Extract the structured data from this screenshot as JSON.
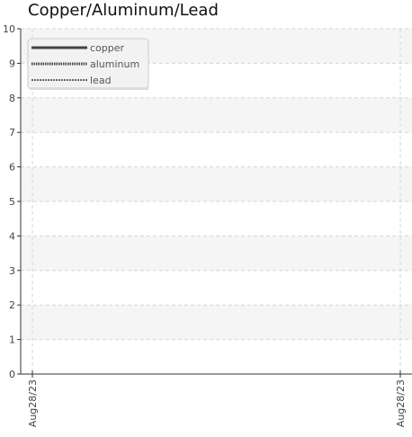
{
  "chart_data": {
    "type": "line",
    "title": "Copper/Aluminum/Lead",
    "xlabel": "",
    "ylabel": "",
    "ylim": [
      0,
      10
    ],
    "y_ticks": [
      "0",
      "1",
      "2",
      "3",
      "4",
      "5",
      "6",
      "7",
      "8",
      "9",
      "10"
    ],
    "x_ticks": [
      "Aug28/23",
      "Aug28/23"
    ],
    "grid": true,
    "legend_position": "top-left",
    "series": [
      {
        "name": "copper",
        "style": "solid",
        "color": "#444444",
        "values": []
      },
      {
        "name": "aluminum",
        "style": "dotted",
        "color": "#444444",
        "values": []
      },
      {
        "name": "lead",
        "style": "dashed",
        "color": "#666666",
        "values": []
      }
    ]
  }
}
